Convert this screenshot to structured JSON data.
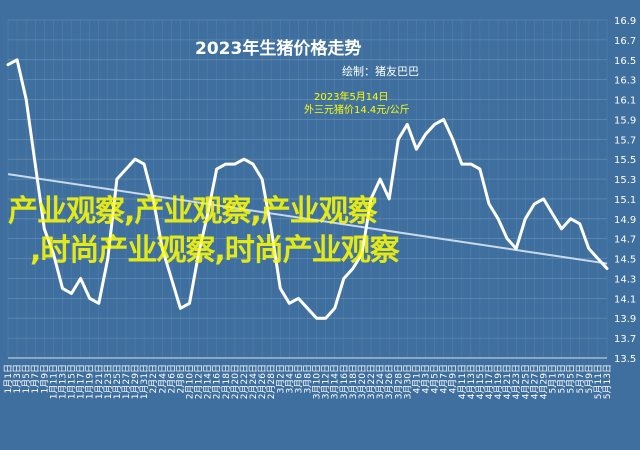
{
  "chart_data": {
    "type": "line",
    "title": "2023年生猪价格走势",
    "author": "绘制：猪友巴巴",
    "annotation": {
      "line1": "2023年5月14日",
      "line2": "外三元猪价14.4元/公斤"
    },
    "ylim": [
      13.5,
      16.9
    ],
    "yticks": [
      "16.9",
      "16.7",
      "16.5",
      "16.3",
      "16.1",
      "15.9",
      "15.7",
      "15.5",
      "15.3",
      "15.1",
      "14.9",
      "14.7",
      "14.5",
      "14.3",
      "14.1",
      "13.9",
      "13.7",
      "13.5"
    ],
    "x_categories": [
      "1月1日",
      "1月3日",
      "1月5日",
      "1月7日",
      "1月9日",
      "1月11日",
      "1月13日",
      "1月15日",
      "1月17日",
      "1月19日",
      "1月21日",
      "1月23日",
      "1月25日",
      "1月27日",
      "1月29日",
      "1月31日",
      "2月2日",
      "2月4日",
      "2月6日",
      "2月8日",
      "2月10日",
      "2月12日",
      "2月14日",
      "2月16日",
      "2月18日",
      "2月20日",
      "2月22日",
      "2月24日",
      "2月26日",
      "2月28日",
      "3月2日",
      "3月4日",
      "3月6日",
      "3月8日",
      "3月10日",
      "3月12日",
      "3月14日",
      "3月16日",
      "3月18日",
      "3月20日",
      "3月22日",
      "3月24日",
      "3月26日",
      "3月28日",
      "3月30日",
      "4月1日",
      "4月3日",
      "4月5日",
      "4月7日",
      "4月9日",
      "4月11日",
      "4月13日",
      "4月15日",
      "4月17日",
      "4月19日",
      "4月21日",
      "4月23日",
      "4月25日",
      "4月27日",
      "4月29日",
      "5月1日",
      "5月3日",
      "5月5日",
      "5月7日",
      "5月9日",
      "5月11日",
      "5月13日"
    ],
    "series": [
      {
        "values": [
          16.45,
          16.5,
          16.1,
          15.45,
          14.8,
          14.55,
          14.2,
          14.15,
          14.3,
          14.1,
          14.05,
          14.5,
          15.3,
          15.4,
          15.5,
          15.45,
          15.1,
          14.6,
          14.3,
          14.0,
          14.05,
          14.55,
          14.95,
          15.4,
          15.45,
          15.45,
          15.5,
          15.45,
          15.3,
          14.8,
          14.2,
          14.05,
          14.1,
          14.0,
          13.9,
          13.9,
          14.0,
          14.3,
          14.4,
          14.55,
          15.1,
          15.3,
          15.1,
          15.7,
          15.85,
          15.6,
          15.75,
          15.85,
          15.9,
          15.7,
          15.45,
          15.45,
          15.4,
          15.05,
          14.9,
          14.7,
          14.6,
          14.9,
          15.05,
          15.1,
          14.95,
          14.8,
          14.9,
          14.85,
          14.6,
          14.5,
          14.4
        ]
      },
      {
        "values": [
          15.35,
          14.45
        ]
      }
    ]
  },
  "watermark": {
    "line1": "产业观察,产业观察,产业观察",
    "line2": ",时尚产业观察,时尚产业观察"
  },
  "colors": {
    "background": "#3f6f9e",
    "line": "#ffffff",
    "grid": "#8aaecc",
    "trend": "#c9d9ea",
    "watermark": "#ffff00",
    "annotation": "#ffff00"
  }
}
